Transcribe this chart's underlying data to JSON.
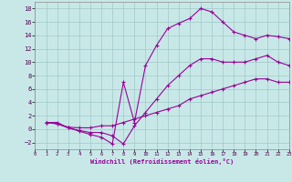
{
  "xlabel": "Windchill (Refroidissement éolien,°C)",
  "bg_color": "#c8e8e8",
  "grid_color": "#a0c8c8",
  "line_color": "#990099",
  "xlim": [
    0,
    23
  ],
  "ylim": [
    -3,
    19
  ],
  "xticks": [
    0,
    1,
    2,
    3,
    4,
    5,
    6,
    7,
    8,
    9,
    10,
    11,
    12,
    13,
    14,
    15,
    16,
    17,
    18,
    19,
    20,
    21,
    22,
    23
  ],
  "yticks": [
    -2,
    0,
    2,
    4,
    6,
    8,
    10,
    12,
    14,
    16,
    18
  ],
  "line1_x": [
    1,
    2,
    3,
    4,
    5,
    6,
    7,
    8,
    9,
    10,
    11,
    12,
    13,
    14,
    15,
    16,
    17,
    18,
    19,
    20,
    21,
    22,
    23
  ],
  "line1_y": [
    1.0,
    1.0,
    0.2,
    -0.3,
    -0.8,
    -1.2,
    -2.2,
    7.0,
    1.0,
    9.5,
    12.5,
    15.0,
    15.8,
    16.5,
    18.0,
    17.5,
    16.0,
    14.5,
    14.0,
    13.5,
    14.0,
    13.8,
    13.5
  ],
  "line2_x": [
    1,
    2,
    3,
    4,
    5,
    6,
    7,
    8,
    9,
    10,
    11,
    12,
    13,
    14,
    15,
    16,
    17,
    18,
    19,
    20,
    21,
    22,
    23
  ],
  "line2_y": [
    1.0,
    0.8,
    0.2,
    -0.2,
    -0.5,
    -0.5,
    -1.0,
    -2.2,
    0.5,
    2.5,
    4.5,
    6.5,
    8.0,
    9.5,
    10.5,
    10.5,
    10.0,
    10.0,
    10.0,
    10.5,
    11.0,
    10.0,
    9.5
  ],
  "line3_x": [
    1,
    2,
    3,
    4,
    5,
    6,
    7,
    8,
    9,
    10,
    11,
    12,
    13,
    14,
    15,
    16,
    17,
    18,
    19,
    20,
    21,
    22,
    23
  ],
  "line3_y": [
    1.0,
    0.8,
    0.3,
    0.2,
    0.2,
    0.5,
    0.5,
    1.0,
    1.5,
    2.0,
    2.5,
    3.0,
    3.5,
    4.5,
    5.0,
    5.5,
    6.0,
    6.5,
    7.0,
    7.5,
    7.5,
    7.0,
    7.0
  ]
}
